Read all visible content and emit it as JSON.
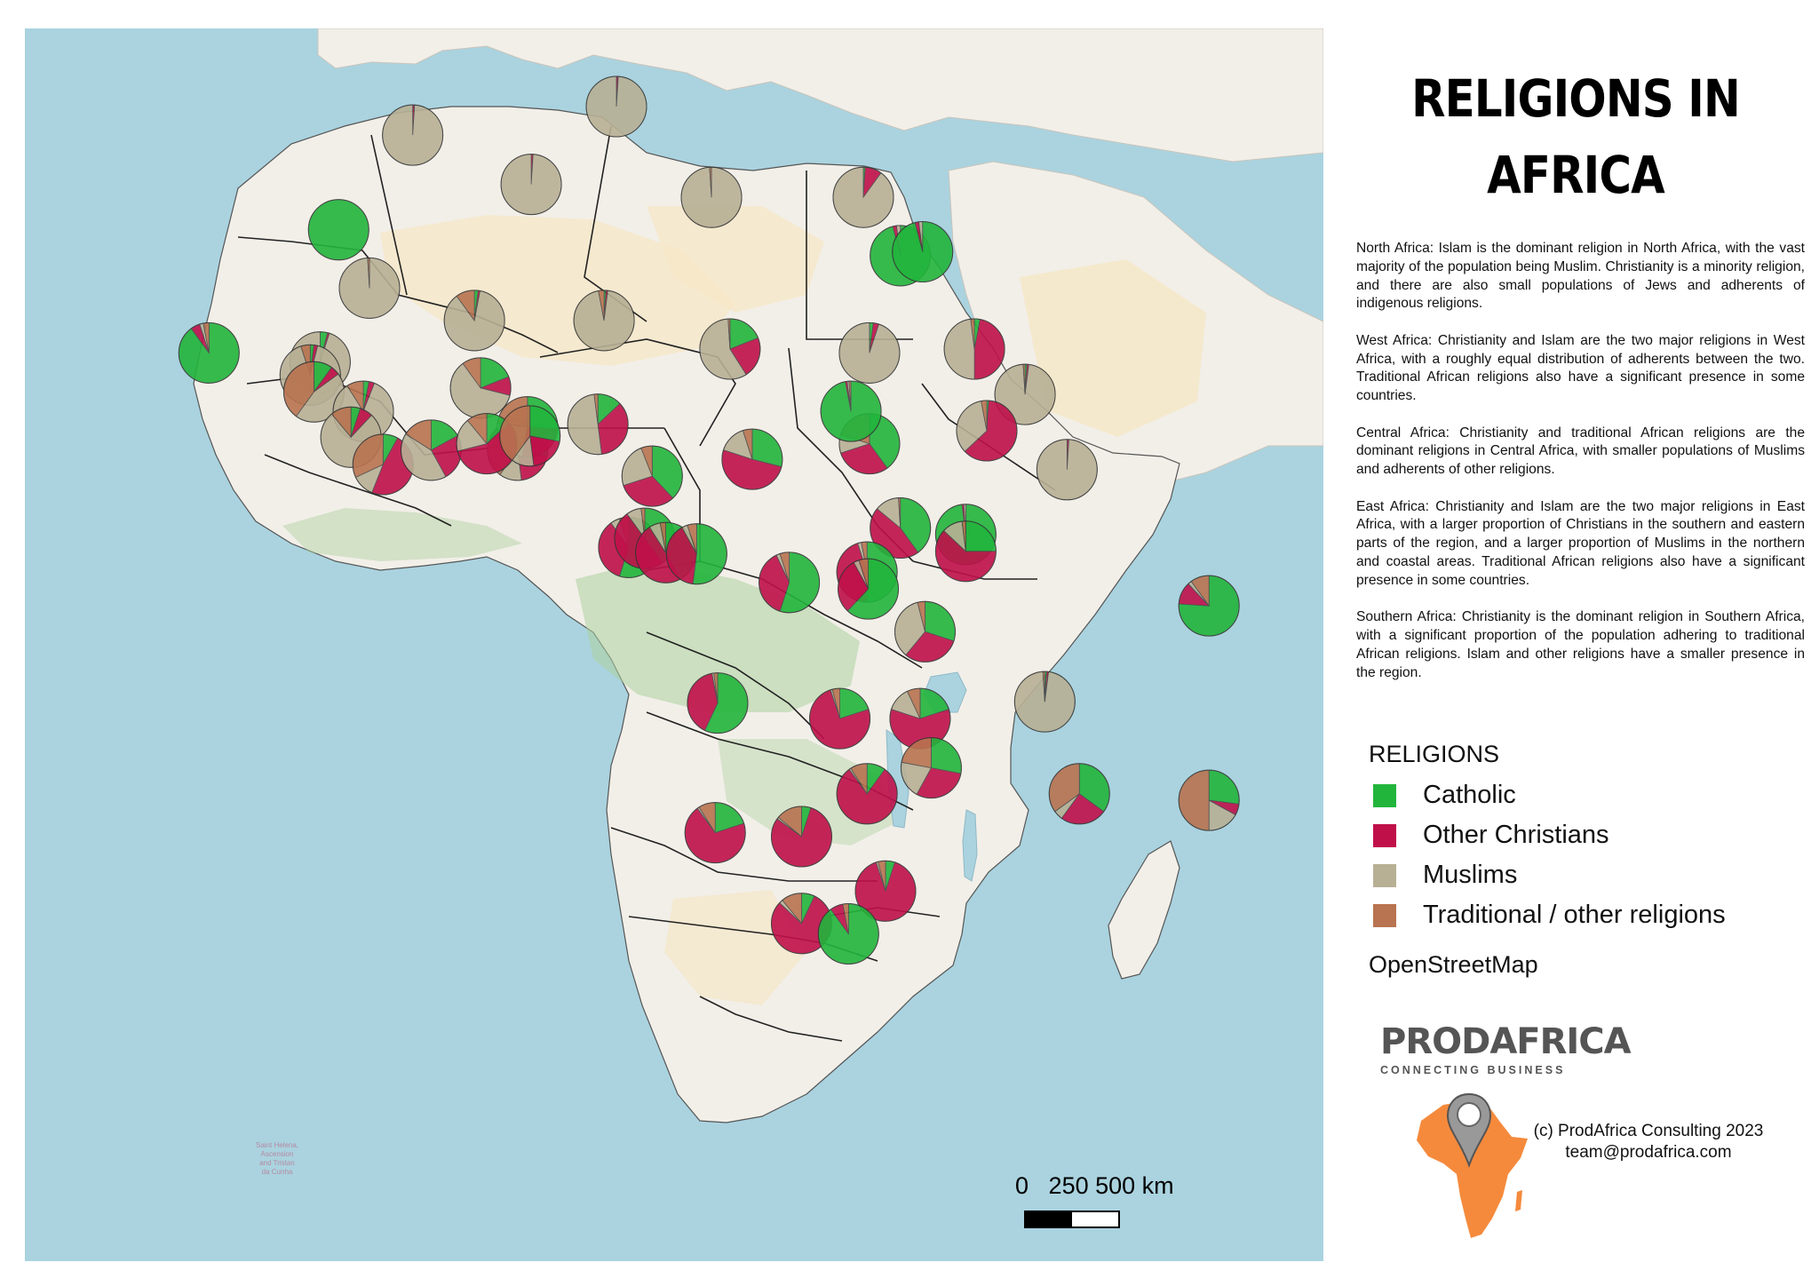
{
  "title": {
    "line1": "RELIGIONS IN",
    "line2": "AFRICA"
  },
  "description": [
    "North Africa: Islam is the dominant religion in North Africa, with the vast majority of the population being Muslim. Christianity is a minority religion, and there are also small populations of Jews and adherents of indigenous religions.",
    "West Africa: Christianity and Islam are the two major religions in West Africa, with a roughly equal distribution of adherents between the two. Traditional African religions also have a significant presence in some countries.",
    "Central Africa: Christianity and traditional African religions are the dominant religions in Central Africa, with smaller populations of Muslims and adherents of other religions.",
    "East Africa: Christianity and Islam are the two major religions in East Africa, with a larger proportion of Christians in the southern and eastern parts of the region, and a larger proportion of Muslims in the northern and coastal areas. Traditional African religions also have a significant presence in some countries.",
    "Southern Africa: Christianity is the dominant religion in Southern Africa, with a significant proportion of the population adhering to traditional African religions. Islam and other religions have a smaller presence in the region."
  ],
  "legend": {
    "title": "RELIGIONS",
    "items": [
      {
        "label": "Catholic",
        "color": "#22b53c"
      },
      {
        "label": "Other Christians",
        "color": "#c0104a"
      },
      {
        "label": "Muslims",
        "color": "#b8b095"
      },
      {
        "label": "Traditional / other religions",
        "color": "#b87350"
      }
    ],
    "basemap": "OpenStreetMap"
  },
  "brand": {
    "name": "PRODAFRICA",
    "tagline": "CONNECTING BUSINESS"
  },
  "copyright": {
    "line1": "(c) ProdAfrica Consulting 2023",
    "line2": "team@prodafrica.com"
  },
  "scale": {
    "labels": [
      "0",
      "250",
      "500 km"
    ]
  },
  "map_labels": {
    "saint_helena": [
      "Saint Helena,",
      "Ascension",
      "and Tristan",
      "da Cunha"
    ]
  },
  "colors": {
    "sea": "#aad3df",
    "land": "#f2efe9",
    "desert": "#f5e7c6",
    "forest": "#add19e",
    "border": "#222222",
    "brand_orange": "#f58a3c"
  },
  "pies": [
    {
      "lonlat": [
        -7.0,
        31.8
      ],
      "values": [
        0,
        1,
        99,
        0
      ]
    },
    {
      "lonlat": [
        9.5,
        34.0
      ],
      "values": [
        0,
        1,
        99,
        0
      ]
    },
    {
      "lonlat": [
        2.6,
        28.0
      ],
      "values": [
        0,
        1,
        99,
        0
      ]
    },
    {
      "lonlat": [
        17.2,
        27.0
      ],
      "values": [
        0,
        0,
        99,
        1
      ]
    },
    {
      "lonlat": [
        29.5,
        27.0
      ],
      "values": [
        1,
        9,
        90,
        0
      ]
    },
    {
      "lonlat": [
        -13.0,
        24.5
      ],
      "values": [
        100,
        0,
        0,
        0
      ]
    },
    {
      "lonlat": [
        -10.5,
        20.0
      ],
      "values": [
        0,
        0,
        99,
        1
      ]
    },
    {
      "lonlat": [
        -2.0,
        17.5
      ],
      "values": [
        2,
        1,
        87,
        10
      ]
    },
    {
      "lonlat": [
        8.5,
        17.5
      ],
      "values": [
        1,
        1,
        95,
        3
      ]
    },
    {
      "lonlat": [
        18.7,
        15.3
      ],
      "values": [
        19,
        22,
        58,
        1
      ]
    },
    {
      "lonlat": [
        30.0,
        15.0
      ],
      "values": [
        2,
        3,
        95,
        0
      ]
    },
    {
      "lonlat": [
        32.5,
        22.5
      ],
      "values": [
        96,
        2,
        2,
        0
      ]
    },
    {
      "lonlat": [
        34.3,
        22.8
      ],
      "values": [
        96,
        2,
        2,
        0
      ]
    },
    {
      "lonlat": [
        38.5,
        15.3
      ],
      "values": [
        3,
        47,
        48,
        2
      ]
    },
    {
      "lonlat": [
        42.6,
        11.8
      ],
      "values": [
        1,
        1,
        97,
        1
      ]
    },
    {
      "lonlat": [
        39.5,
        9.0
      ],
      "values": [
        1,
        62,
        34,
        3
      ]
    },
    {
      "lonlat": [
        46.0,
        6.0
      ],
      "values": [
        0,
        1,
        99,
        0
      ]
    },
    {
      "lonlat": [
        -23.5,
        15.0
      ],
      "values": [
        90,
        5,
        2,
        3
      ]
    },
    {
      "lonlat": [
        -14.5,
        14.3
      ],
      "values": [
        4,
        1,
        95,
        0
      ]
    },
    {
      "lonlat": [
        -15.3,
        13.3
      ],
      "values": [
        2,
        2,
        91,
        5
      ]
    },
    {
      "lonlat": [
        -15.0,
        12.0
      ],
      "values": [
        10,
        5,
        45,
        40
      ]
    },
    {
      "lonlat": [
        -11.0,
        10.5
      ],
      "values": [
        3,
        3,
        85,
        9
      ]
    },
    {
      "lonlat": [
        -12.0,
        8.5
      ],
      "values": [
        5,
        7,
        77,
        11
      ]
    },
    {
      "lonlat": [
        -9.4,
        6.4
      ],
      "values": [
        8,
        48,
        12,
        32
      ]
    },
    {
      "lonlat": [
        -5.5,
        7.5
      ],
      "values": [
        17,
        25,
        42,
        16
      ]
    },
    {
      "lonlat": [
        -1.5,
        12.3
      ],
      "values": [
        19,
        10,
        61,
        10
      ]
    },
    {
      "lonlat": [
        1.5,
        7.5
      ],
      "values": [
        28,
        20,
        12,
        40
      ]
    },
    {
      "lonlat": [
        2.3,
        9.3
      ],
      "values": [
        26,
        27,
        24,
        23
      ]
    },
    {
      "lonlat": [
        -1.0,
        8.0
      ],
      "values": [
        13,
        58,
        18,
        11
      ]
    },
    {
      "lonlat": [
        2.5,
        8.6
      ],
      "values": [
        28,
        20,
        12,
        40
      ]
    },
    {
      "lonlat": [
        8.0,
        9.5
      ],
      "values": [
        13,
        35,
        50,
        2
      ]
    },
    {
      "lonlat": [
        12.4,
        5.5
      ],
      "values": [
        38,
        32,
        24,
        6
      ]
    },
    {
      "lonlat": [
        20.5,
        6.8
      ],
      "values": [
        29,
        51,
        15,
        5
      ]
    },
    {
      "lonlat": [
        30.0,
        8.0
      ],
      "values": [
        40,
        30,
        10,
        20
      ]
    },
    {
      "lonlat": [
        28.5,
        10.5
      ],
      "values": [
        97,
        1,
        1,
        1
      ]
    },
    {
      "lonlat": [
        37.8,
        1.0
      ],
      "values": [
        98,
        1,
        1,
        0
      ]
    },
    {
      "lonlat": [
        32.5,
        1.5
      ],
      "values": [
        40,
        46,
        13,
        1
      ]
    },
    {
      "lonlat": [
        37.8,
        -0.3
      ],
      "values": [
        25,
        62,
        11,
        2
      ]
    },
    {
      "lonlat": [
        10.5,
        0.0
      ],
      "values": [
        55,
        35,
        5,
        5
      ]
    },
    {
      "lonlat": [
        11.8,
        0.7
      ],
      "values": [
        40,
        50,
        8,
        2
      ]
    },
    {
      "lonlat": [
        13.5,
        -0.4
      ],
      "values": [
        42,
        49,
        6,
        3
      ]
    },
    {
      "lonlat": [
        16.0,
        -0.5
      ],
      "values": [
        52,
        40,
        3,
        5
      ]
    },
    {
      "lonlat": [
        23.5,
        -2.7
      ],
      "values": [
        55,
        38,
        2,
        5
      ]
    },
    {
      "lonlat": [
        29.8,
        -1.9
      ],
      "values": [
        50,
        45,
        2,
        3
      ]
    },
    {
      "lonlat": [
        29.9,
        -3.2
      ],
      "values": [
        62,
        30,
        3,
        5
      ]
    },
    {
      "lonlat": [
        34.5,
        -6.5
      ],
      "values": [
        30,
        31,
        35,
        4
      ]
    },
    {
      "lonlat": [
        57.5,
        -4.5
      ],
      "values": [
        76,
        12,
        2,
        10
      ]
    },
    {
      "lonlat": [
        44.2,
        -11.9
      ],
      "values": [
        1,
        1,
        97,
        1
      ]
    },
    {
      "lonlat": [
        17.7,
        -12.0
      ],
      "values": [
        57,
        40,
        1,
        2
      ]
    },
    {
      "lonlat": [
        27.6,
        -13.2
      ],
      "values": [
        20,
        75,
        1,
        4
      ]
    },
    {
      "lonlat": [
        34.1,
        -13.2
      ],
      "values": [
        20,
        60,
        13,
        7
      ]
    },
    {
      "lonlat": [
        35.0,
        -17.0
      ],
      "values": [
        28,
        30,
        20,
        22
      ]
    },
    {
      "lonlat": [
        47.0,
        -19.0
      ],
      "values": [
        35,
        25,
        5,
        35
      ]
    },
    {
      "lonlat": [
        57.5,
        -19.5
      ],
      "values": [
        27,
        6,
        17,
        50
      ]
    },
    {
      "lonlat": [
        29.8,
        -19.0
      ],
      "values": [
        10,
        80,
        1,
        9
      ]
    },
    {
      "lonlat": [
        17.5,
        -22.0
      ],
      "values": [
        20,
        70,
        1,
        9
      ]
    },
    {
      "lonlat": [
        24.5,
        -22.3
      ],
      "values": [
        5,
        80,
        1,
        14
      ]
    },
    {
      "lonlat": [
        31.3,
        -26.5
      ],
      "values": [
        5,
        90,
        1,
        4
      ]
    },
    {
      "lonlat": [
        24.5,
        -29.0
      ],
      "values": [
        7,
        80,
        2,
        11
      ]
    },
    {
      "lonlat": [
        28.3,
        -29.8
      ],
      "values": [
        90,
        7,
        0,
        3
      ]
    }
  ]
}
